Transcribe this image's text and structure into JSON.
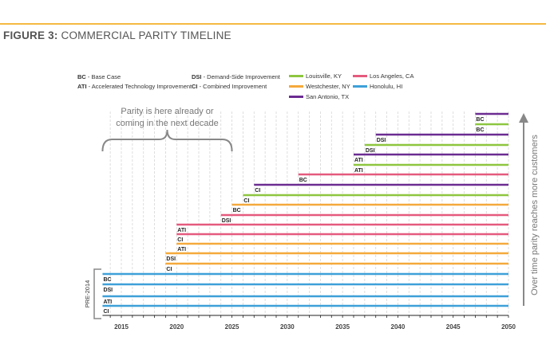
{
  "title": {
    "bold": "FIGURE 3:",
    "rest": " COMMERCIAL PARITY TIMELINE"
  },
  "colors": {
    "accent_line": "#F5B942"
  },
  "chart_data": {
    "type": "timeline-bar",
    "xlim": [
      2013.3,
      2050
    ],
    "xticks": [
      2015,
      2020,
      2025,
      2030,
      2035,
      2040,
      2045,
      2050
    ],
    "grid": "vertical dashed every year",
    "legend_abbrev": [
      {
        "abbr": "BC",
        "text": " - Base Case"
      },
      {
        "abbr": "ATI",
        "text": " - Accelerated Technology Improvement"
      },
      {
        "abbr": "DSI",
        "text": " - Demand-Side Improvement"
      },
      {
        "abbr": "CI",
        "text": " - Combined Improvement"
      }
    ],
    "legend_placement": "top",
    "cities": [
      {
        "name": "Louisville, KY",
        "color": "#8DC63F"
      },
      {
        "name": "Westchester, NY",
        "color": "#F5A93B"
      },
      {
        "name": "San Antonio, TX",
        "color": "#6B2C91"
      },
      {
        "name": "Los Angeles, CA",
        "color": "#E55A7E"
      },
      {
        "name": "Honolulu, HI",
        "color": "#3EA0D8"
      }
    ],
    "bars": [
      {
        "city": "San Antonio, TX",
        "scenario": "BC",
        "start": 2047,
        "end": 2050
      },
      {
        "city": "Louisville, KY",
        "scenario": "BC",
        "start": 2047,
        "end": 2050
      },
      {
        "city": "San Antonio, TX",
        "scenario": "DSI",
        "start": 2038,
        "end": 2050
      },
      {
        "city": "Louisville, KY",
        "scenario": "DSI",
        "start": 2037,
        "end": 2050
      },
      {
        "city": "San Antonio, TX",
        "scenario": "ATI",
        "start": 2036,
        "end": 2050
      },
      {
        "city": "Louisville, KY",
        "scenario": "ATI",
        "start": 2036,
        "end": 2050
      },
      {
        "city": "Los Angeles, CA",
        "scenario": "BC",
        "start": 2031,
        "end": 2050
      },
      {
        "city": "San Antonio, TX",
        "scenario": "CI",
        "start": 2027,
        "end": 2050
      },
      {
        "city": "Louisville, KY",
        "scenario": "CI",
        "start": 2026,
        "end": 2050
      },
      {
        "city": "Westchester, NY",
        "scenario": "BC",
        "start": 2025,
        "end": 2050
      },
      {
        "city": "Los Angeles, CA",
        "scenario": "DSI",
        "start": 2024,
        "end": 2050
      },
      {
        "city": "Los Angeles, CA",
        "scenario": "ATI",
        "start": 2020,
        "end": 2050
      },
      {
        "city": "Los Angeles, CA",
        "scenario": "CI",
        "start": 2020,
        "end": 2050
      },
      {
        "city": "Westchester, NY",
        "scenario": "ATI",
        "start": 2020,
        "end": 2050
      },
      {
        "city": "Westchester, NY",
        "scenario": "DSI",
        "start": 2019,
        "end": 2050
      },
      {
        "city": "Westchester, NY",
        "scenario": "CI",
        "start": 2019,
        "end": 2050
      },
      {
        "city": "Honolulu, HI",
        "scenario": "BC",
        "start": "pre-2014",
        "end": 2050
      },
      {
        "city": "Honolulu, HI",
        "scenario": "DSI",
        "start": "pre-2014",
        "end": 2050
      },
      {
        "city": "Honolulu, HI",
        "scenario": "ATI",
        "start": "pre-2014",
        "end": 2050
      },
      {
        "city": "Honolulu, HI",
        "scenario": "CI",
        "start": "pre-2014",
        "end": 2050
      }
    ],
    "annotations": {
      "brace_text": [
        "Parity is here already or",
        "coming in the next decade"
      ],
      "brace_range": [
        2013.3,
        2025
      ],
      "pre_label": "PRE-2014",
      "arrow_text": "Over time parity reaches more customers"
    }
  }
}
